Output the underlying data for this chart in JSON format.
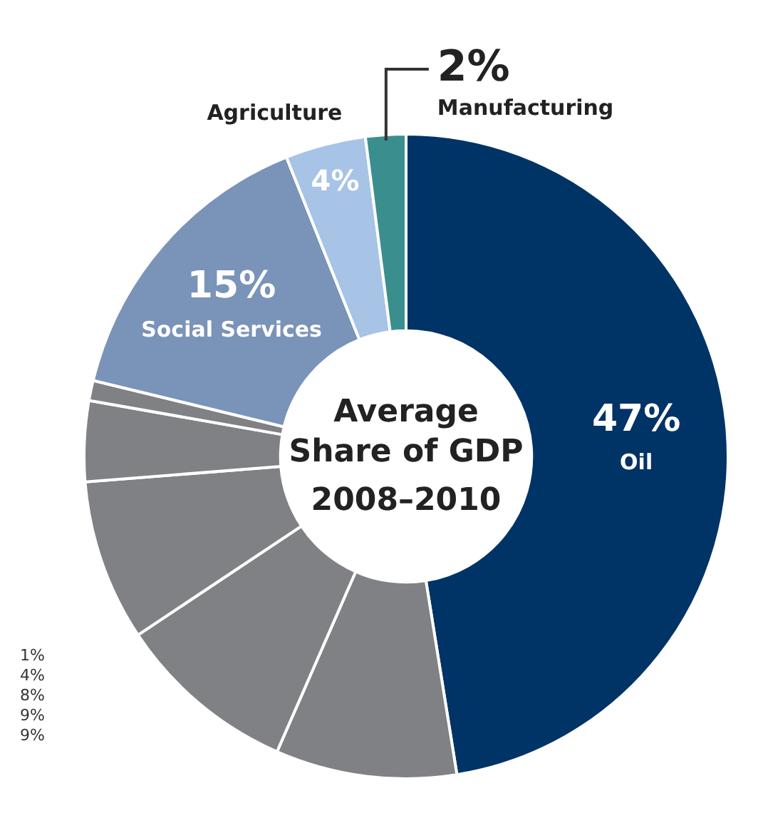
{
  "chart_data": {
    "type": "donut",
    "title": "Average Share of GDP",
    "subtitle": "2008–2010",
    "categories": [
      "Oil",
      null,
      null,
      null,
      null,
      null,
      "Social Services",
      "Agriculture",
      "Manufacturing"
    ],
    "values": [
      47,
      9,
      9,
      8,
      4,
      1,
      15,
      4,
      2
    ],
    "colors": [
      "#003366",
      "#808184",
      "#808184",
      "#808184",
      "#808184",
      "#808184",
      "#7a93b8",
      "#a7c3e6",
      "#3b8e8e"
    ],
    "value_labels": [
      "47%",
      null,
      null,
      null,
      null,
      null,
      "15%",
      "4%",
      "2%"
    ],
    "annotations": [
      "1%",
      "4%",
      "8%",
      "9%",
      "9%"
    ],
    "legend": false
  }
}
